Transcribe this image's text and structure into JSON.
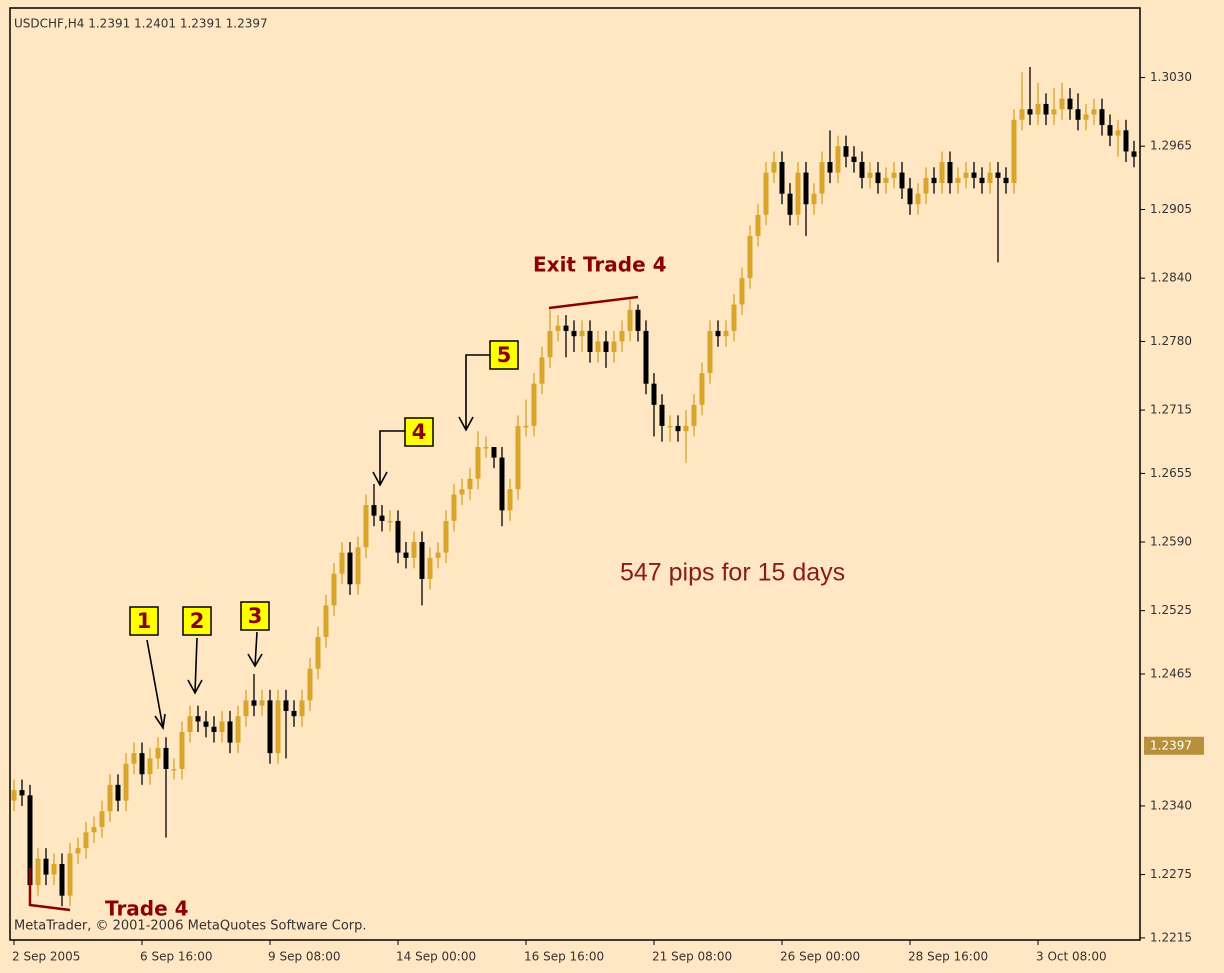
{
  "chart_data": {
    "type": "candlestick",
    "title": "USDCHF,H4  1.2391 1.2401 1.2391 1.2397",
    "copyright": "MetaTrader, © 2001-2006 MetaQuotes Software Corp.",
    "annotations": {
      "markers": [
        "1",
        "2",
        "3",
        "4",
        "5"
      ],
      "exit": "Exit Trade 4",
      "entry": "Trade 4",
      "summary": "547 pips for 15 days"
    },
    "up_color": "#d9a52b",
    "down_color": "#000000",
    "ylim": [
      1.2213,
      1.3094
    ],
    "yticks": [
      {
        "value": 1.303,
        "label": "1.3030"
      },
      {
        "value": 1.2965,
        "label": "1.2965"
      },
      {
        "value": 1.2905,
        "label": "1.2905"
      },
      {
        "value": 1.284,
        "label": "1.2840"
      },
      {
        "value": 1.278,
        "label": "1.2780"
      },
      {
        "value": 1.2715,
        "label": "1.2715"
      },
      {
        "value": 1.2655,
        "label": "1.2655"
      },
      {
        "value": 1.259,
        "label": "1.2590"
      },
      {
        "value": 1.2525,
        "label": "1.2525"
      },
      {
        "value": 1.2465,
        "label": "1.2465"
      },
      {
        "value": 1.234,
        "label": "1.2340"
      },
      {
        "value": 1.2275,
        "label": "1.2275"
      },
      {
        "value": 1.2215,
        "label": "1.2215"
      }
    ],
    "price_marker": {
      "value": 1.2397,
      "label": "1.2397"
    },
    "categories": [
      "2 Sep 2005",
      null,
      null,
      null,
      null,
      null,
      null,
      null,
      null,
      null,
      null,
      null,
      null,
      null,
      null,
      null,
      "6 Sep 16:00",
      null,
      null,
      null,
      null,
      null,
      null,
      null,
      null,
      null,
      null,
      null,
      null,
      null,
      null,
      null,
      "9 Sep 08:00",
      null,
      null,
      null,
      null,
      null,
      null,
      null,
      null,
      null,
      null,
      null,
      null,
      null,
      null,
      null,
      "14 Sep 00:00",
      null,
      null,
      null,
      null,
      null,
      null,
      null,
      null,
      null,
      null,
      null,
      null,
      null,
      null,
      null,
      "16 Sep 16:00",
      null,
      null,
      null,
      null,
      null,
      null,
      null,
      null,
      null,
      null,
      null,
      null,
      null,
      null,
      null,
      "21 Sep 08:00",
      null,
      null,
      null,
      null,
      null,
      null,
      null,
      null,
      null,
      null,
      null,
      null,
      null,
      null,
      null,
      "26 Sep 00:00",
      null,
      null,
      null,
      null,
      null,
      null,
      null,
      null,
      null,
      null,
      null,
      null,
      null,
      null,
      null,
      "28 Sep 16:00",
      null,
      null,
      null,
      null,
      null,
      null,
      null,
      null,
      null,
      null,
      null,
      null,
      null,
      null,
      null,
      "3 Oct 08:00",
      null,
      null,
      null,
      null,
      null,
      null,
      null,
      null,
      null,
      null,
      null,
      null
    ],
    "open": [
      1.2345,
      1.2355,
      1.235,
      1.2265,
      1.229,
      1.2275,
      1.2285,
      1.2255,
      1.2295,
      1.23,
      1.2315,
      1.232,
      1.2335,
      1.236,
      1.2345,
      1.238,
      1.239,
      1.237,
      1.2385,
      1.2395,
      1.2375,
      1.2375,
      1.241,
      1.2425,
      1.242,
      1.2415,
      1.241,
      1.242,
      1.24,
      1.2425,
      1.244,
      1.2435,
      1.244,
      1.239,
      1.244,
      1.243,
      1.2425,
      1.244,
      1.247,
      1.25,
      1.253,
      1.256,
      1.258,
      1.255,
      1.2585,
      1.2625,
      1.2615,
      1.261,
      1.261,
      1.258,
      1.2575,
      1.259,
      1.2555,
      1.2575,
      1.258,
      1.261,
      1.2635,
      1.264,
      1.265,
      1.268,
      1.268,
      1.267,
      1.262,
      1.264,
      1.27,
      1.27,
      1.274,
      1.2765,
      1.279,
      1.2795,
      1.279,
      1.2785,
      1.279,
      1.277,
      1.278,
      1.277,
      1.278,
      1.279,
      1.281,
      1.279,
      1.274,
      1.272,
      1.27,
      1.27,
      1.2695,
      1.27,
      1.272,
      1.275,
      1.279,
      1.2785,
      1.279,
      1.2815,
      1.284,
      1.288,
      1.29,
      1.294,
      1.295,
      1.292,
      1.29,
      1.294,
      1.291,
      1.292,
      1.295,
      1.294,
      1.2965,
      1.2955,
      1.295,
      1.2935,
      1.294,
      1.293,
      1.2935,
      1.294,
      1.2925,
      1.291,
      1.292,
      1.2935,
      1.293,
      1.295,
      1.293,
      1.2935,
      1.294,
      1.2935,
      1.293,
      1.294,
      1.2935,
      1.293,
      1.299,
      1.3,
      1.2995,
      1.3005,
      1.2995,
      1.3,
      1.301,
      1.3,
      1.299,
      1.2995,
      1.3,
      1.2985,
      1.2975,
      1.298,
      1.296
    ],
    "high": [
      1.2365,
      1.2365,
      1.236,
      1.23,
      1.23,
      1.2295,
      1.2295,
      1.2305,
      1.231,
      1.2325,
      1.233,
      1.2345,
      1.237,
      1.237,
      1.239,
      1.24,
      1.24,
      1.2395,
      1.2405,
      1.2405,
      1.2385,
      1.242,
      1.2435,
      1.2435,
      1.243,
      1.2425,
      1.243,
      1.243,
      1.2435,
      1.245,
      1.2465,
      1.245,
      1.245,
      1.245,
      1.245,
      1.244,
      1.245,
      1.248,
      1.251,
      1.254,
      1.257,
      1.259,
      1.259,
      1.2595,
      1.2635,
      1.2645,
      1.2625,
      1.262,
      1.262,
      1.259,
      1.26,
      1.26,
      1.2585,
      1.259,
      1.262,
      1.2645,
      1.265,
      1.266,
      1.2695,
      1.269,
      1.268,
      1.268,
      1.265,
      1.271,
      1.2725,
      1.275,
      1.2775,
      1.281,
      1.2805,
      1.2805,
      1.28,
      1.28,
      1.28,
      1.279,
      1.279,
      1.279,
      1.28,
      1.282,
      1.2815,
      1.28,
      1.275,
      1.273,
      1.271,
      1.271,
      1.2715,
      1.273,
      1.276,
      1.28,
      1.28,
      1.28,
      1.2825,
      1.285,
      1.289,
      1.291,
      1.295,
      1.296,
      1.296,
      1.293,
      1.295,
      1.295,
      1.293,
      1.296,
      1.298,
      1.2975,
      1.2975,
      1.2965,
      1.296,
      1.295,
      1.295,
      1.2945,
      1.295,
      1.295,
      1.2935,
      1.293,
      1.2945,
      1.2945,
      1.296,
      1.296,
      1.2945,
      1.295,
      1.295,
      1.2945,
      1.295,
      1.295,
      1.2945,
      1.3,
      1.3035,
      1.304,
      1.3025,
      1.3015,
      1.302,
      1.3025,
      1.302,
      1.3015,
      1.3005,
      1.301,
      1.301,
      1.2995,
      1.299,
      1.299,
      1.297
    ],
    "low": [
      1.2335,
      1.234,
      1.2255,
      1.2255,
      1.2265,
      1.2265,
      1.2245,
      1.2245,
      1.2285,
      1.229,
      1.2305,
      1.231,
      1.2325,
      1.2335,
      1.2335,
      1.237,
      1.236,
      1.236,
      1.2375,
      1.231,
      1.2365,
      1.2365,
      1.24,
      1.241,
      1.2405,
      1.24,
      1.24,
      1.239,
      1.239,
      1.2415,
      1.2425,
      1.2425,
      1.238,
      1.238,
      1.2385,
      1.2415,
      1.2415,
      1.243,
      1.246,
      1.249,
      1.252,
      1.255,
      1.254,
      1.254,
      1.2575,
      1.2605,
      1.26,
      1.26,
      1.257,
      1.2565,
      1.2565,
      1.253,
      1.2545,
      1.2565,
      1.257,
      1.26,
      1.2625,
      1.263,
      1.264,
      1.267,
      1.266,
      1.2605,
      1.261,
      1.263,
      1.269,
      1.269,
      1.273,
      1.2755,
      1.278,
      1.2765,
      1.277,
      1.277,
      1.276,
      1.276,
      1.2755,
      1.276,
      1.277,
      1.278,
      1.278,
      1.273,
      1.269,
      1.2685,
      1.2685,
      1.2685,
      1.2665,
      1.269,
      1.271,
      1.274,
      1.2775,
      1.2775,
      1.278,
      1.2805,
      1.283,
      1.287,
      1.289,
      1.293,
      1.291,
      1.289,
      1.289,
      1.288,
      1.29,
      1.291,
      1.293,
      1.293,
      1.2945,
      1.294,
      1.2925,
      1.2925,
      1.292,
      1.292,
      1.2925,
      1.2915,
      1.29,
      1.29,
      1.291,
      1.292,
      1.292,
      1.292,
      1.292,
      1.2925,
      1.2925,
      1.292,
      1.292,
      1.2855,
      1.292,
      1.292,
      1.298,
      1.2985,
      1.2985,
      1.2985,
      1.2985,
      1.299,
      1.299,
      1.298,
      1.298,
      1.2985,
      1.2975,
      1.2965,
      1.2955,
      1.295,
      1.2945
    ],
    "close": [
      1.2355,
      1.235,
      1.2265,
      1.229,
      1.2275,
      1.2285,
      1.2255,
      1.2295,
      1.23,
      1.2315,
      1.232,
      1.2335,
      1.236,
      1.2345,
      1.238,
      1.239,
      1.237,
      1.2385,
      1.2395,
      1.2375,
      1.2375,
      1.241,
      1.2425,
      1.242,
      1.2415,
      1.241,
      1.242,
      1.24,
      1.2425,
      1.244,
      1.2435,
      1.244,
      1.239,
      1.244,
      1.243,
      1.2425,
      1.244,
      1.247,
      1.25,
      1.253,
      1.256,
      1.258,
      1.255,
      1.2585,
      1.2625,
      1.2615,
      1.261,
      1.261,
      1.258,
      1.2575,
      1.259,
      1.2555,
      1.2575,
      1.258,
      1.261,
      1.2635,
      1.264,
      1.265,
      1.268,
      1.268,
      1.267,
      1.262,
      1.264,
      1.27,
      1.27,
      1.274,
      1.2765,
      1.279,
      1.2795,
      1.279,
      1.2785,
      1.279,
      1.277,
      1.278,
      1.277,
      1.278,
      1.279,
      1.281,
      1.279,
      1.274,
      1.272,
      1.27,
      1.27,
      1.2695,
      1.27,
      1.272,
      1.275,
      1.279,
      1.2785,
      1.279,
      1.2815,
      1.284,
      1.288,
      1.29,
      1.294,
      1.295,
      1.292,
      1.29,
      1.294,
      1.291,
      1.292,
      1.295,
      1.294,
      1.2965,
      1.2955,
      1.295,
      1.2935,
      1.294,
      1.293,
      1.2935,
      1.294,
      1.2925,
      1.291,
      1.292,
      1.2935,
      1.293,
      1.295,
      1.293,
      1.2935,
      1.294,
      1.2935,
      1.293,
      1.294,
      1.2935,
      1.293,
      1.299,
      1.3,
      1.2995,
      1.3005,
      1.2995,
      1.3,
      1.301,
      1.3,
      1.299,
      1.2995,
      1.3,
      1.2985,
      1.2975,
      1.298,
      1.296,
      1.2955
    ]
  }
}
